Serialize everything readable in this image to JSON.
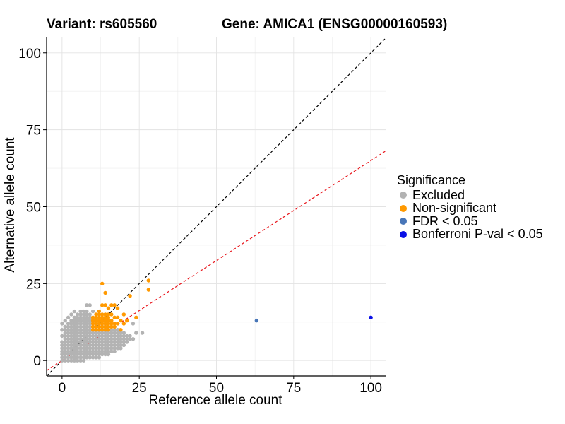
{
  "chart_data": {
    "type": "scatter",
    "title_variant": "Variant: rs605560",
    "title_gene": "Gene: AMICA1 (ENSG00000160593)",
    "xlabel": "Reference allele count",
    "ylabel": "Alternative allele count",
    "xlim": [
      -5,
      105
    ],
    "ylim": [
      -5,
      105
    ],
    "x_ticks": [
      0,
      25,
      50,
      75,
      100
    ],
    "y_ticks": [
      0,
      25,
      50,
      75,
      100
    ],
    "grid": true,
    "reference_lines": [
      {
        "kind": "identity",
        "slope": 1,
        "intercept": 0,
        "style": "dashed",
        "color": "#000000"
      },
      {
        "kind": "expected",
        "slope": 0.65,
        "intercept": 0,
        "style": "dashed",
        "color": "#e8151b"
      }
    ],
    "legend": {
      "title": "Significance",
      "placement": "right",
      "entries": [
        {
          "label": "Excluded",
          "color": "#b3b3b3"
        },
        {
          "label": "Non-significant",
          "color": "#ff9900"
        },
        {
          "label": "FDR < 0.05",
          "color": "#4876b8"
        },
        {
          "label": "Bonferroni P-val < 0.05",
          "color": "#0a10e6"
        }
      ]
    },
    "series": [
      {
        "name": "Excluded",
        "color": "#b3b3b3",
        "points": [
          [
            0,
            0
          ],
          [
            0,
            1
          ],
          [
            0,
            2
          ],
          [
            0,
            3
          ],
          [
            0,
            4
          ],
          [
            0,
            5
          ],
          [
            0,
            6
          ],
          [
            0,
            8
          ],
          [
            0,
            10
          ],
          [
            0,
            12
          ],
          [
            1,
            0
          ],
          [
            1,
            1
          ],
          [
            1,
            2
          ],
          [
            1,
            3
          ],
          [
            1,
            4
          ],
          [
            1,
            5
          ],
          [
            1,
            6
          ],
          [
            1,
            7
          ],
          [
            1,
            8
          ],
          [
            1,
            9
          ],
          [
            1,
            10
          ],
          [
            1,
            11
          ],
          [
            1,
            13
          ],
          [
            2,
            0
          ],
          [
            2,
            1
          ],
          [
            2,
            2
          ],
          [
            2,
            3
          ],
          [
            2,
            4
          ],
          [
            2,
            5
          ],
          [
            2,
            6
          ],
          [
            2,
            7
          ],
          [
            2,
            8
          ],
          [
            2,
            9
          ],
          [
            2,
            10
          ],
          [
            2,
            11
          ],
          [
            2,
            12
          ],
          [
            2,
            14
          ],
          [
            3,
            0
          ],
          [
            3,
            1
          ],
          [
            3,
            2
          ],
          [
            3,
            3
          ],
          [
            3,
            4
          ],
          [
            3,
            5
          ],
          [
            3,
            6
          ],
          [
            3,
            7
          ],
          [
            3,
            8
          ],
          [
            3,
            9
          ],
          [
            3,
            10
          ],
          [
            3,
            11
          ],
          [
            3,
            12
          ],
          [
            3,
            13
          ],
          [
            3,
            15
          ],
          [
            4,
            0
          ],
          [
            4,
            1
          ],
          [
            4,
            2
          ],
          [
            4,
            3
          ],
          [
            4,
            4
          ],
          [
            4,
            5
          ],
          [
            4,
            6
          ],
          [
            4,
            7
          ],
          [
            4,
            8
          ],
          [
            4,
            9
          ],
          [
            4,
            10
          ],
          [
            4,
            11
          ],
          [
            4,
            12
          ],
          [
            4,
            13
          ],
          [
            4,
            14
          ],
          [
            4,
            16
          ],
          [
            5,
            0
          ],
          [
            5,
            1
          ],
          [
            5,
            2
          ],
          [
            5,
            3
          ],
          [
            5,
            4
          ],
          [
            5,
            5
          ],
          [
            5,
            6
          ],
          [
            5,
            7
          ],
          [
            5,
            8
          ],
          [
            5,
            9
          ],
          [
            5,
            10
          ],
          [
            5,
            11
          ],
          [
            5,
            12
          ],
          [
            5,
            13
          ],
          [
            5,
            14
          ],
          [
            5,
            15
          ],
          [
            6,
            0
          ],
          [
            6,
            1
          ],
          [
            6,
            2
          ],
          [
            6,
            3
          ],
          [
            6,
            4
          ],
          [
            6,
            5
          ],
          [
            6,
            6
          ],
          [
            6,
            7
          ],
          [
            6,
            8
          ],
          [
            6,
            9
          ],
          [
            6,
            10
          ],
          [
            6,
            11
          ],
          [
            6,
            12
          ],
          [
            6,
            13
          ],
          [
            6,
            14
          ],
          [
            6,
            15
          ],
          [
            6,
            16
          ],
          [
            7,
            0
          ],
          [
            7,
            1
          ],
          [
            7,
            2
          ],
          [
            7,
            3
          ],
          [
            7,
            4
          ],
          [
            7,
            5
          ],
          [
            7,
            6
          ],
          [
            7,
            7
          ],
          [
            7,
            8
          ],
          [
            7,
            9
          ],
          [
            7,
            10
          ],
          [
            7,
            11
          ],
          [
            7,
            12
          ],
          [
            7,
            13
          ],
          [
            7,
            14
          ],
          [
            7,
            15
          ],
          [
            7,
            16
          ],
          [
            8,
            1
          ],
          [
            8,
            2
          ],
          [
            8,
            3
          ],
          [
            8,
            4
          ],
          [
            8,
            5
          ],
          [
            8,
            6
          ],
          [
            8,
            7
          ],
          [
            8,
            8
          ],
          [
            8,
            9
          ],
          [
            8,
            10
          ],
          [
            8,
            11
          ],
          [
            8,
            12
          ],
          [
            8,
            13
          ],
          [
            8,
            14
          ],
          [
            8,
            15
          ],
          [
            8,
            16
          ],
          [
            8,
            18
          ],
          [
            9,
            1
          ],
          [
            9,
            2
          ],
          [
            9,
            3
          ],
          [
            9,
            4
          ],
          [
            9,
            5
          ],
          [
            9,
            6
          ],
          [
            9,
            7
          ],
          [
            9,
            8
          ],
          [
            9,
            9
          ],
          [
            9,
            10
          ],
          [
            9,
            11
          ],
          [
            9,
            12
          ],
          [
            9,
            13
          ],
          [
            9,
            14
          ],
          [
            9,
            15
          ],
          [
            9,
            18
          ],
          [
            10,
            1
          ],
          [
            10,
            2
          ],
          [
            10,
            3
          ],
          [
            10,
            4
          ],
          [
            10,
            5
          ],
          [
            10,
            6
          ],
          [
            10,
            7
          ],
          [
            10,
            8
          ],
          [
            10,
            9
          ],
          [
            10,
            10
          ],
          [
            10,
            11
          ],
          [
            10,
            12
          ],
          [
            10,
            13
          ],
          [
            10,
            14
          ],
          [
            10,
            16
          ],
          [
            11,
            1
          ],
          [
            11,
            2
          ],
          [
            11,
            3
          ],
          [
            11,
            4
          ],
          [
            11,
            5
          ],
          [
            11,
            6
          ],
          [
            11,
            7
          ],
          [
            11,
            8
          ],
          [
            11,
            9
          ],
          [
            11,
            10
          ],
          [
            11,
            11
          ],
          [
            11,
            12
          ],
          [
            11,
            13
          ],
          [
            12,
            1
          ],
          [
            12,
            2
          ],
          [
            12,
            3
          ],
          [
            12,
            4
          ],
          [
            12,
            5
          ],
          [
            12,
            6
          ],
          [
            12,
            7
          ],
          [
            12,
            8
          ],
          [
            12,
            9
          ],
          [
            12,
            10
          ],
          [
            12,
            11
          ],
          [
            12,
            12
          ],
          [
            13,
            2
          ],
          [
            13,
            3
          ],
          [
            13,
            4
          ],
          [
            13,
            5
          ],
          [
            13,
            6
          ],
          [
            13,
            7
          ],
          [
            13,
            8
          ],
          [
            13,
            9
          ],
          [
            13,
            10
          ],
          [
            13,
            11
          ],
          [
            14,
            2
          ],
          [
            14,
            3
          ],
          [
            14,
            4
          ],
          [
            14,
            5
          ],
          [
            14,
            6
          ],
          [
            14,
            7
          ],
          [
            14,
            8
          ],
          [
            14,
            9
          ],
          [
            14,
            10
          ],
          [
            14,
            11
          ],
          [
            15,
            2
          ],
          [
            15,
            3
          ],
          [
            15,
            4
          ],
          [
            15,
            5
          ],
          [
            15,
            6
          ],
          [
            15,
            7
          ],
          [
            15,
            8
          ],
          [
            15,
            9
          ],
          [
            15,
            10
          ],
          [
            15,
            11
          ],
          [
            16,
            3
          ],
          [
            16,
            4
          ],
          [
            16,
            5
          ],
          [
            16,
            6
          ],
          [
            16,
            7
          ],
          [
            16,
            8
          ],
          [
            16,
            9
          ],
          [
            16,
            10
          ],
          [
            17,
            3
          ],
          [
            17,
            4
          ],
          [
            17,
            5
          ],
          [
            17,
            6
          ],
          [
            17,
            7
          ],
          [
            17,
            8
          ],
          [
            17,
            9
          ],
          [
            17,
            10
          ],
          [
            18,
            4
          ],
          [
            18,
            5
          ],
          [
            18,
            6
          ],
          [
            18,
            7
          ],
          [
            18,
            8
          ],
          [
            18,
            9
          ],
          [
            18,
            10
          ],
          [
            19,
            4
          ],
          [
            19,
            5
          ],
          [
            19,
            6
          ],
          [
            19,
            7
          ],
          [
            19,
            8
          ],
          [
            19,
            9
          ],
          [
            20,
            5
          ],
          [
            20,
            6
          ],
          [
            20,
            7
          ],
          [
            20,
            8
          ],
          [
            20,
            9
          ],
          [
            21,
            6
          ],
          [
            21,
            7
          ],
          [
            21,
            8
          ],
          [
            22,
            7
          ],
          [
            22,
            8
          ],
          [
            23,
            12
          ],
          [
            23,
            7
          ],
          [
            24,
            9
          ],
          [
            26,
            9
          ]
        ]
      },
      {
        "name": "Non-significant",
        "color": "#ff9900",
        "points": [
          [
            10,
            10
          ],
          [
            10,
            11
          ],
          [
            10,
            12
          ],
          [
            10,
            13
          ],
          [
            10,
            14
          ],
          [
            11,
            10
          ],
          [
            11,
            11
          ],
          [
            11,
            12
          ],
          [
            11,
            13
          ],
          [
            11,
            14
          ],
          [
            11,
            15
          ],
          [
            12,
            10
          ],
          [
            12,
            11
          ],
          [
            12,
            12
          ],
          [
            12,
            13
          ],
          [
            12,
            14
          ],
          [
            12,
            15
          ],
          [
            12,
            16
          ],
          [
            13,
            10
          ],
          [
            13,
            11
          ],
          [
            13,
            12
          ],
          [
            13,
            13
          ],
          [
            13,
            14
          ],
          [
            13,
            15
          ],
          [
            13,
            18
          ],
          [
            13,
            25
          ],
          [
            14,
            10
          ],
          [
            14,
            11
          ],
          [
            14,
            12
          ],
          [
            14,
            13
          ],
          [
            14,
            14
          ],
          [
            14,
            15
          ],
          [
            14,
            18
          ],
          [
            14,
            22
          ],
          [
            15,
            10
          ],
          [
            15,
            11
          ],
          [
            15,
            12
          ],
          [
            15,
            13
          ],
          [
            15,
            14
          ],
          [
            15,
            15
          ],
          [
            15,
            17
          ],
          [
            16,
            11
          ],
          [
            16,
            12
          ],
          [
            16,
            13
          ],
          [
            16,
            15
          ],
          [
            16,
            18
          ],
          [
            17,
            11
          ],
          [
            17,
            12
          ],
          [
            17,
            14
          ],
          [
            17,
            18
          ],
          [
            18,
            12
          ],
          [
            18,
            14
          ],
          [
            18,
            17
          ],
          [
            19,
            10
          ],
          [
            19,
            13
          ],
          [
            20,
            12
          ],
          [
            20,
            15
          ],
          [
            21,
            13
          ],
          [
            22,
            21
          ],
          [
            24,
            14
          ],
          [
            28,
            23
          ],
          [
            28,
            26
          ]
        ]
      },
      {
        "name": "FDR < 0.05",
        "color": "#4876b8",
        "points": [
          [
            63,
            13
          ]
        ]
      },
      {
        "name": "Bonferroni P-val < 0.05",
        "color": "#0a10e6",
        "points": [
          [
            100,
            14
          ]
        ]
      }
    ]
  }
}
